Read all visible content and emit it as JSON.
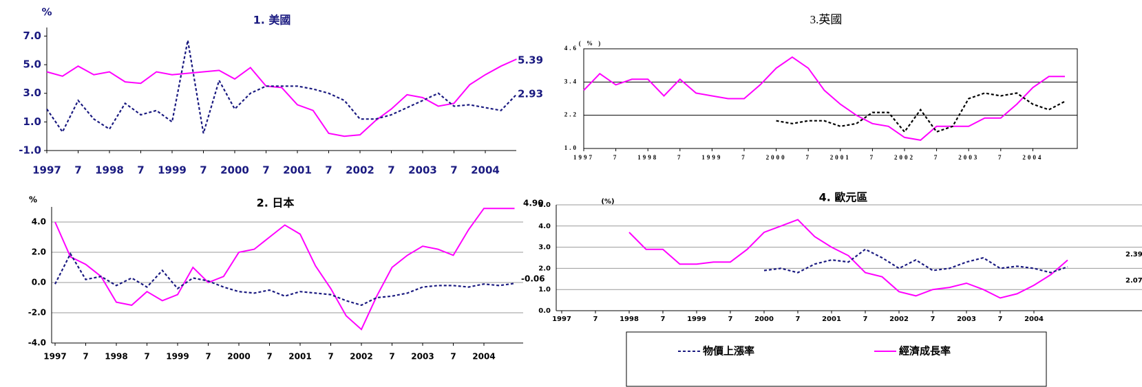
{
  "chart_data": [
    {
      "type": "line",
      "title": "1. 美國",
      "unit": "%",
      "grid": false,
      "categories": [
        "1997",
        null,
        "7",
        null,
        "1998",
        null,
        "7",
        null,
        "1999",
        null,
        "7",
        null,
        "2000",
        null,
        "7",
        null,
        "2001",
        null,
        "7",
        null,
        "2002",
        null,
        "7",
        null,
        "2003",
        null,
        "7",
        null,
        "2004",
        null,
        null,
        null
      ],
      "ylim": [
        -1,
        7.6
      ],
      "yticks": [
        {
          "value": -1,
          "label": "-1.0"
        },
        {
          "value": 1,
          "label": "1.0"
        },
        {
          "value": 3,
          "label": "3.0"
        },
        {
          "value": 5,
          "label": "5.0"
        },
        {
          "value": 7,
          "label": "7.0"
        }
      ],
      "annotations": [
        "5.39",
        "2.93"
      ],
      "series": [
        {
          "color": "#ff00ff",
          "dash": false,
          "values": [
            4.5,
            4.2,
            4.9,
            4.3,
            4.5,
            3.8,
            3.7,
            4.5,
            4.3,
            4.4,
            4.5,
            4.6,
            4.0,
            4.8,
            3.5,
            3.4,
            2.2,
            1.8,
            0.2,
            0.0,
            0.1,
            1.1,
            1.9,
            2.9,
            2.7,
            2.1,
            2.3,
            3.6,
            4.3,
            4.9,
            5.39,
            null
          ]
        },
        {
          "color": "#1a1a80",
          "dash": true,
          "values": [
            1.9,
            0.3,
            2.5,
            1.2,
            0.5,
            2.3,
            1.5,
            1.8,
            1.0,
            6.7,
            0.2,
            3.9,
            1.9,
            3.0,
            3.5,
            3.5,
            3.5,
            3.3,
            3.0,
            2.5,
            1.2,
            1.2,
            1.5,
            2.0,
            2.5,
            3.0,
            2.1,
            2.2,
            2.0,
            1.8,
            2.93,
            null
          ]
        }
      ]
    },
    {
      "type": "line",
      "title": "2. 日本",
      "unit": "%",
      "grid": true,
      "categories": [
        "1997",
        null,
        "7",
        null,
        "1998",
        null,
        "7",
        null,
        "1999",
        null,
        "7",
        null,
        "2000",
        null,
        "7",
        null,
        "2001",
        null,
        "7",
        null,
        "2002",
        null,
        "7",
        null,
        "2003",
        null,
        "7",
        null,
        "2004",
        null,
        null,
        null
      ],
      "ylim": [
        -4,
        5
      ],
      "yticks": [
        {
          "value": -4,
          "label": "-4.0"
        },
        {
          "value": -2,
          "label": "-2.0"
        },
        {
          "value": 0,
          "label": "0.0"
        },
        {
          "value": 2,
          "label": "2.0"
        },
        {
          "value": 4,
          "label": "4.0"
        }
      ],
      "annotations": [
        "4.90",
        "-0.06"
      ],
      "series": [
        {
          "color": "#ff00ff",
          "dash": false,
          "values": [
            4.0,
            1.7,
            1.2,
            0.4,
            -1.3,
            -1.5,
            -0.6,
            -1.2,
            -0.8,
            1.0,
            0.0,
            0.4,
            2.0,
            2.2,
            3.0,
            3.8,
            3.2,
            1.1,
            -0.4,
            -2.2,
            -3.1,
            -0.9,
            1.0,
            1.8,
            2.4,
            2.2,
            1.8,
            3.5,
            4.9,
            4.9,
            4.9,
            null
          ]
        },
        {
          "color": "#1a1a80",
          "dash": true,
          "values": [
            -0.1,
            1.9,
            0.2,
            0.4,
            -0.2,
            0.3,
            -0.3,
            0.8,
            -0.4,
            0.3,
            0.1,
            -0.3,
            -0.6,
            -0.7,
            -0.5,
            -0.9,
            -0.6,
            -0.7,
            -0.8,
            -1.2,
            -1.5,
            -1.0,
            -0.9,
            -0.7,
            -0.3,
            -0.2,
            -0.2,
            -0.3,
            -0.1,
            -0.2,
            -0.06,
            null
          ]
        }
      ]
    },
    {
      "type": "line",
      "title": "3.英國",
      "unit": "( % )",
      "grid": true,
      "categories": [
        "1997",
        null,
        "7",
        null,
        "1998",
        null,
        "7",
        null,
        "1999",
        null,
        "7",
        null,
        "2000",
        null,
        "7",
        null,
        "2001",
        null,
        "7",
        null,
        "2002",
        null,
        "7",
        null,
        "2003",
        null,
        "7",
        null,
        "2004",
        null,
        null,
        null
      ],
      "ylim": [
        1.0,
        4.6
      ],
      "yticks": [
        {
          "value": 1.0,
          "label": "1.0"
        },
        {
          "value": 2.2,
          "label": "2.2"
        },
        {
          "value": 3.4,
          "label": "3.4"
        },
        {
          "value": 4.6,
          "label": "4.6"
        }
      ],
      "annotations": [],
      "series": [
        {
          "color": "#ff00ff",
          "dash": false,
          "values": [
            3.1,
            3.7,
            3.3,
            3.5,
            3.5,
            2.9,
            3.5,
            3.0,
            2.9,
            2.8,
            2.8,
            3.3,
            3.9,
            4.3,
            3.9,
            3.1,
            2.6,
            2.2,
            1.9,
            1.8,
            1.4,
            1.3,
            1.8,
            1.8,
            1.8,
            2.1,
            2.1,
            2.6,
            3.2,
            3.6,
            3.6,
            null
          ]
        },
        {
          "color": "#000000",
          "dash": true,
          "values": [
            null,
            null,
            null,
            null,
            null,
            null,
            null,
            null,
            null,
            null,
            null,
            null,
            2.0,
            1.9,
            2.0,
            2.0,
            1.8,
            1.9,
            2.3,
            2.3,
            1.6,
            2.4,
            1.6,
            1.8,
            2.8,
            3.0,
            2.9,
            3.0,
            2.6,
            2.4,
            2.7,
            null
          ]
        }
      ]
    },
    {
      "type": "line",
      "title": "4. 歐元區",
      "unit": "(%)",
      "grid": true,
      "categories": [
        "1997",
        null,
        "7",
        null,
        "1998",
        null,
        "7",
        null,
        "1999",
        null,
        "7",
        null,
        "2000",
        null,
        "7",
        null,
        "2001",
        null,
        "7",
        null,
        "2002",
        null,
        "7",
        null,
        "2003",
        null,
        "7",
        null,
        "2004",
        null,
        null,
        null
      ],
      "ylim": [
        0,
        5
      ],
      "yticks": [
        {
          "value": 0,
          "label": "0.0"
        },
        {
          "value": 1,
          "label": "1.0"
        },
        {
          "value": 2,
          "label": "2.0"
        },
        {
          "value": 3,
          "label": "3.0"
        },
        {
          "value": 4,
          "label": "4.0"
        },
        {
          "value": 5,
          "label": "5.0"
        }
      ],
      "annotations": [
        "2.39",
        "2.07"
      ],
      "series": [
        {
          "color": "#ff00ff",
          "dash": false,
          "values": [
            null,
            null,
            null,
            null,
            3.7,
            2.9,
            2.9,
            2.2,
            2.2,
            2.3,
            2.3,
            2.9,
            3.7,
            4.0,
            4.3,
            3.5,
            3.0,
            2.6,
            1.8,
            1.6,
            0.9,
            0.7,
            1.0,
            1.1,
            1.3,
            1.0,
            0.6,
            0.8,
            1.2,
            1.7,
            2.39,
            null
          ]
        },
        {
          "color": "#1a1a80",
          "dash": true,
          "values": [
            null,
            null,
            null,
            null,
            null,
            null,
            null,
            null,
            null,
            null,
            null,
            null,
            1.9,
            2.0,
            1.8,
            2.2,
            2.4,
            2.3,
            2.9,
            2.5,
            2.0,
            2.4,
            1.9,
            2.0,
            2.3,
            2.5,
            2.0,
            2.1,
            2.0,
            1.8,
            2.07,
            null
          ]
        }
      ]
    }
  ],
  "legend": [
    {
      "name": "物價上漲率",
      "color": "#1a1a80",
      "dash": true
    },
    {
      "name": "經濟成長率",
      "color": "#ff00ff",
      "dash": false
    }
  ]
}
